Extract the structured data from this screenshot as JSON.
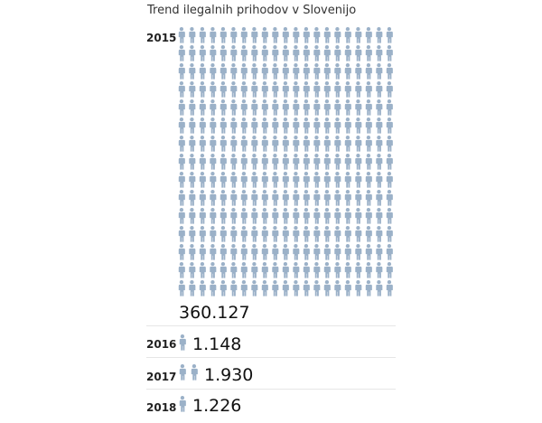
{
  "chart_data": {
    "type": "pictogram",
    "title": "Trend ilegalnih prihodov v Slovenijo",
    "icon": "person-icon",
    "icon_color": "#9bb1c8",
    "text_color": "#111111",
    "categories": [
      "2015",
      "2016",
      "2017",
      "2018"
    ],
    "values": [
      360127,
      1148,
      1930,
      1226
    ],
    "value_labels": [
      "360.127",
      "1.148",
      "1.930",
      "1.226"
    ],
    "icon_counts": [
      315,
      1,
      2,
      1
    ]
  }
}
